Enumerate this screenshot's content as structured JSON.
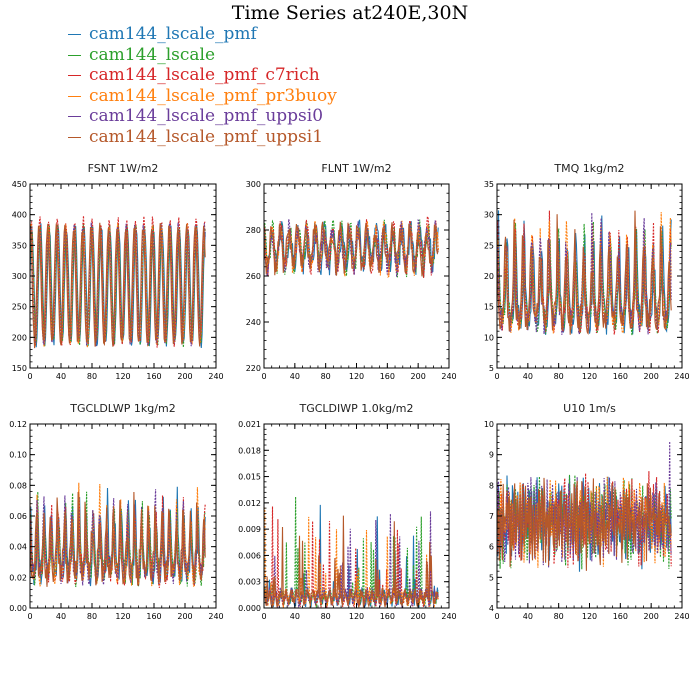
{
  "page": {
    "title": "Time Series at240E,30N"
  },
  "legend": [
    {
      "name": "cam144_lscale_pmf",
      "color": "#1f77b4"
    },
    {
      "name": "cam144_lscale",
      "color": "#2ca02c"
    },
    {
      "name": "cam144_lscale_pmf_c7rich",
      "color": "#d62728"
    },
    {
      "name": "cam144_lscale_pmf_pr3buoy",
      "color": "#ff7f0e"
    },
    {
      "name": "cam144_lscale_pmf_uppsi0",
      "color": "#6a3d9a"
    },
    {
      "name": "cam144_lscale_pmf_uppsi1",
      "color": "#b5582a"
    }
  ],
  "chart_data": [
    {
      "type": "line",
      "title": "FSNT 1W/m2",
      "xlim": [
        0,
        240
      ],
      "xticks": [
        "0",
        "40",
        "80",
        "120",
        "160",
        "200",
        "240"
      ],
      "ylim": [
        150,
        450
      ],
      "yticks": [
        "150",
        "200",
        "250",
        "300",
        "350",
        "400",
        "450"
      ],
      "x_range": [
        0,
        226
      ],
      "base": 285,
      "amp": 95,
      "noise": 8,
      "period": 11.2,
      "extra_gain": 1.0,
      "phase": 0.2,
      "spike": 0,
      "shape": "season"
    },
    {
      "type": "line",
      "title": "FLNT 1W/m2",
      "xlim": [
        0,
        240
      ],
      "xticks": [
        "0",
        "40",
        "80",
        "120",
        "160",
        "200",
        "240"
      ],
      "ylim": [
        220,
        300
      ],
      "yticks": [
        "220",
        "240",
        "260",
        "280",
        "300"
      ],
      "x_range": [
        0,
        226
      ],
      "base": 272,
      "amp": 8,
      "noise": 5,
      "period": 11.2,
      "extra_gain": 1.0,
      "phase": 1.4,
      "spike": 0,
      "shape": "season"
    },
    {
      "type": "line",
      "title": "TMQ 1kg/m2",
      "xlim": [
        0,
        240
      ],
      "xticks": [
        "0",
        "40",
        "80",
        "120",
        "160",
        "200",
        "240"
      ],
      "ylim": [
        5,
        35
      ],
      "yticks": [
        "5",
        "10",
        "15",
        "20",
        "25",
        "30",
        "35"
      ],
      "x_range": [
        0,
        226
      ],
      "base": 15,
      "amp": 4.5,
      "noise": 2,
      "period": 11.2,
      "extra_gain": 1.8,
      "phase": 0.5,
      "spike": 0,
      "shape": "peaks"
    },
    {
      "type": "line",
      "title": "TGCLDLWP 1kg/m2",
      "xlim": [
        0,
        240
      ],
      "xticks": [
        "0",
        "40",
        "80",
        "120",
        "160",
        "200",
        "240"
      ],
      "ylim": [
        0,
        0.12
      ],
      "yticks": [
        "0.00",
        "0.02",
        "0.04",
        "0.06",
        "0.08",
        "0.10",
        "0.12"
      ],
      "x_range": [
        0,
        226
      ],
      "base": 0.03,
      "amp": 0.015,
      "noise": 0.008,
      "period": 9,
      "extra_gain": 1.6,
      "phase": 0.8,
      "spike": 0,
      "shape": "peaks"
    },
    {
      "type": "line",
      "title": "TGCLDIWP 1.0kg/m2",
      "xlim": [
        0,
        240
      ],
      "xticks": [
        "0",
        "40",
        "80",
        "120",
        "160",
        "200",
        "240"
      ],
      "ylim": [
        0,
        0.021
      ],
      "yticks": [
        "0.000",
        "0.003",
        "0.006",
        "0.009",
        "0.012",
        "0.015",
        "0.018",
        "0.021"
      ],
      "x_range": [
        0,
        226
      ],
      "base": 0.0012,
      "amp": 0.0006,
      "noise": 0.0006,
      "period": 7,
      "extra_gain": 1.4,
      "phase": 0.3,
      "spike": 0.013,
      "shape": "spiky"
    },
    {
      "type": "line",
      "title": "U10 1m/s",
      "xlim": [
        0,
        240
      ],
      "xticks": [
        "0",
        "40",
        "80",
        "120",
        "160",
        "200",
        "240"
      ],
      "ylim": [
        4,
        10
      ],
      "yticks": [
        "4",
        "5",
        "6",
        "7",
        "8",
        "9",
        "10"
      ],
      "x_range": [
        0,
        226
      ],
      "base": 6.8,
      "amp": 0.7,
      "noise": 0.45,
      "period": 6,
      "extra_gain": 1.0,
      "phase": 2.0,
      "spike": 0,
      "shape": "noise"
    }
  ]
}
